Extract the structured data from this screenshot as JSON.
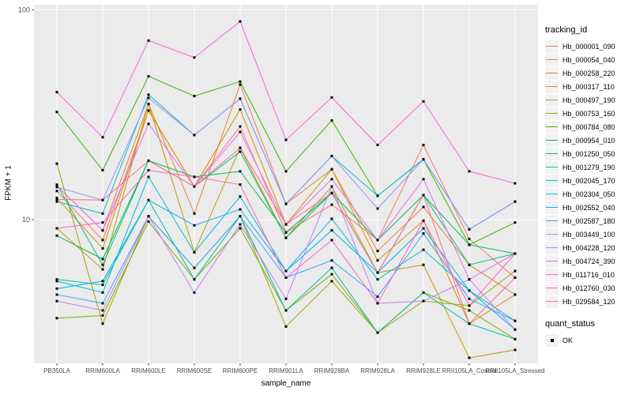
{
  "figure": {
    "y_title": "FPKM + 1",
    "x_title": "sample_name",
    "y_tick_labels": [
      "100",
      "10"
    ],
    "panel_bg": "#EBEBEB",
    "grid_color": "#FFFFFF",
    "tick_label_color": "#4D4D4D",
    "marker_color": "#000000"
  },
  "legend": {
    "tracking_title": "tracking_id",
    "quant_title": "quant_status",
    "quant_items": [
      {
        "label": "OK",
        "marker": "black-square"
      }
    ]
  },
  "chart_data": {
    "type": "line",
    "scale": "log10",
    "title": "",
    "xlabel": "sample_name",
    "ylabel": "FPKM + 1",
    "ylim": [
      2.07,
      105.6
    ],
    "yticks": [
      {
        "label": "100",
        "value": 100
      },
      {
        "label": "10",
        "value": 10
      }
    ],
    "minor_ticks": [
      31.62,
      3.162
    ],
    "grid": true,
    "legend_position": "right",
    "marker": "black-square",
    "categories": [
      "PB350LA",
      "RRIM600LA",
      "RRIM600LE",
      "RRIM600SE",
      "RRIM600PE",
      "RRIM901LA",
      "RRIM928BA",
      "RRIM928LA",
      "RRIM928LE",
      "RRII105LA_Control",
      "RRII105LA_Stressed"
    ],
    "series": [
      {
        "name": "Hb_000001_090",
        "color": "#F8766D",
        "values": [
          13.7,
          8.0,
          33.1,
          14.4,
          27.8,
          8.7,
          11.8,
          8.0,
          22.7,
          8.1,
          5.3
        ]
      },
      {
        "name": "Hb_000054_040",
        "color": "#EA8331",
        "values": [
          14.5,
          8.9,
          35.6,
          10.7,
          44.0,
          11.9,
          17.4,
          7.1,
          11.5,
          6.1,
          4.4
        ]
      },
      {
        "name": "Hb_000258_220",
        "color": "#D89000",
        "values": [
          12.7,
          7.3,
          33.1,
          14.4,
          33.5,
          9.5,
          17.4,
          6.4,
          9.9,
          3.2,
          4.4
        ]
      },
      {
        "name": "Hb_000317_110",
        "color": "#C09B00",
        "values": [
          9.1,
          5.8,
          35.6,
          7.0,
          22.0,
          8.2,
          14.4,
          5.6,
          6.1,
          2.2,
          2.4
        ]
      },
      {
        "name": "Hb_000497_190",
        "color": "#A3A500",
        "values": [
          18.5,
          3.2,
          10.4,
          5.9,
          10.4,
          3.1,
          5.1,
          2.9,
          4.1,
          3.9,
          5.7
        ]
      },
      {
        "name": "Hb_000753_160",
        "color": "#7CAE00",
        "values": [
          3.4,
          3.5,
          9.8,
          5.2,
          9.1,
          3.7,
          5.5,
          2.9,
          4.5,
          3.7,
          2.7
        ]
      },
      {
        "name": "Hb_000784_080",
        "color": "#39B600",
        "values": [
          32.6,
          17.2,
          48.2,
          38.8,
          45.5,
          17.0,
          29.7,
          13.0,
          19.4,
          7.6,
          9.7
        ]
      },
      {
        "name": "Hb_000954_010",
        "color": "#00BB4E",
        "values": [
          8.4,
          6.5,
          19.1,
          16.0,
          17.0,
          8.7,
          13.4,
          8.0,
          13.1,
          7.6,
          6.9
        ]
      },
      {
        "name": "Hb_001250_050",
        "color": "#00BF7D",
        "values": [
          14.7,
          6.1,
          19.1,
          14.4,
          21.1,
          8.2,
          13.4,
          5.6,
          13.1,
          6.1,
          6.9
        ]
      },
      {
        "name": "Hb_001279_190",
        "color": "#00C1A3",
        "values": [
          5.2,
          4.9,
          12.4,
          5.2,
          10.4,
          3.7,
          5.9,
          2.9,
          4.5,
          3.2,
          2.7
        ]
      },
      {
        "name": "Hb_002045_170",
        "color": "#00BFC4",
        "values": [
          12.2,
          10.7,
          39.4,
          25.3,
          37.7,
          11.9,
          20.1,
          13.0,
          19.4,
          9.0,
          12.2
        ]
      },
      {
        "name": "Hb_002304_050",
        "color": "#00BAE0",
        "values": [
          5.1,
          4.5,
          16.0,
          7.0,
          12.9,
          5.7,
          10.1,
          5.2,
          7.2,
          4.6,
          3.3
        ]
      },
      {
        "name": "Hb_002552_040",
        "color": "#00B0F6",
        "values": [
          4.7,
          5.1,
          12.4,
          9.4,
          11.2,
          5.7,
          8.9,
          5.6,
          9.1,
          4.6,
          3.0
        ]
      },
      {
        "name": "Hb_002587_180",
        "color": "#35A2FF",
        "values": [
          4.4,
          4.0,
          10.4,
          5.9,
          10.4,
          5.3,
          6.4,
          4.3,
          8.6,
          4.2,
          3.3
        ]
      },
      {
        "name": "Hb_003449_100",
        "color": "#9590FF",
        "values": [
          14.3,
          12.4,
          38.0,
          25.3,
          37.7,
          11.9,
          20.1,
          11.3,
          19.4,
          9.0,
          12.2
        ]
      },
      {
        "name": "Hb_004228_120",
        "color": "#C77CFF",
        "values": [
          4.1,
          3.7,
          10.4,
          4.5,
          9.5,
          4.2,
          14.4,
          4.0,
          4.1,
          5.2,
          3.0
        ]
      },
      {
        "name": "Hb_004724_390",
        "color": "#E76BF3",
        "values": [
          14.5,
          8.9,
          28.6,
          14.4,
          26.2,
          9.5,
          15.6,
          8.0,
          15.6,
          5.2,
          6.9
        ]
      },
      {
        "name": "Hb_011716_010",
        "color": "#FA62DB",
        "values": [
          40.5,
          24.7,
          71.3,
          59.2,
          88.0,
          24.0,
          38.2,
          22.7,
          36.6,
          17.0,
          14.9
        ]
      },
      {
        "name": "Hb_012760_030",
        "color": "#FF62BC",
        "values": [
          9.1,
          9.7,
          17.2,
          16.0,
          14.7,
          5.3,
          8.0,
          4.0,
          9.9,
          3.9,
          6.9
        ]
      },
      {
        "name": "Hb_029584_120",
        "color": "#FF6A98",
        "values": [
          12.5,
          12.4,
          19.1,
          14.4,
          22.0,
          9.5,
          13.4,
          5.6,
          13.1,
          3.2,
          5.3
        ]
      }
    ]
  }
}
